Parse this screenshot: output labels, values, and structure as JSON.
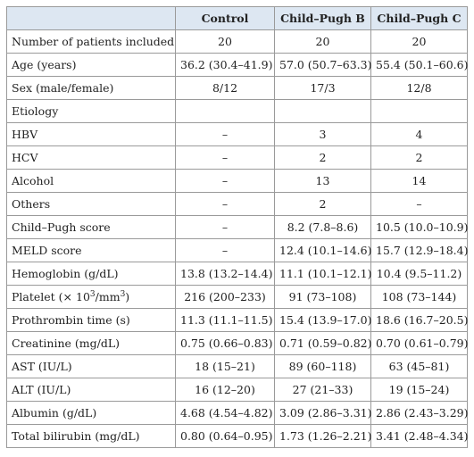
{
  "table": {
    "header": [
      "Control",
      "Child–Pugh B",
      "Child–Pugh C"
    ],
    "rows": [
      [
        "Number of patients included",
        "20",
        "20",
        "20"
      ],
      [
        "Age (years)",
        "36.2 (30.4–41.9)",
        "57.0 (50.7–63.3)",
        "55.4 (50.1–60.6)"
      ],
      [
        "Sex (male/female)",
        "8/12",
        "17/3",
        "12/8"
      ],
      [
        "Etiology"
      ],
      [
        "HBV",
        "–",
        "3",
        "4"
      ],
      [
        "HCV",
        "–",
        "2",
        "2"
      ],
      [
        "Alcohol",
        "–",
        "13",
        "14"
      ],
      [
        "Others",
        "–",
        "2",
        "–"
      ],
      [
        "Child–Pugh score",
        "–",
        "8.2 (7.8–8.6)",
        "10.5 (10.0–10.9)"
      ],
      [
        "MELD score",
        "–",
        "12.4 (10.1–14.6)",
        "15.7 (12.9–18.4)"
      ],
      [
        "Hemoglobin (g/dL)",
        "13.8 (13.2–14.4)",
        "11.1 (10.1–12.1)",
        "10.4 (9.5–11.2)"
      ],
      [
        [
          "Platelet (× 10",
          "3",
          "/mm",
          "3",
          ")"
        ],
        "216 (200–233)",
        "91 (73–108)",
        "108 (73–144)"
      ],
      [
        "Prothrombin time (s)",
        "11.3 (11.1–11.5)",
        "15.4 (13.9–17.0)",
        "18.6 (16.7–20.5)"
      ],
      [
        "Creatinine (mg/dL)",
        "0.75 (0.66–0.83)",
        "0.71 (0.59–0.82)",
        "0.70 (0.61–0.79)"
      ],
      [
        "AST (IU/L)",
        "18 (15–21)",
        "89 (60–118)",
        "63 (45–81)"
      ],
      [
        "ALT (IU/L)",
        "16 (12–20)",
        "27 (21–33)",
        "19 (15–24)"
      ],
      [
        "Albumin (g/dL)",
        "4.68 (4.54–4.82)",
        "3.09 (2.86–3.31)",
        "2.86 (2.43–3.29)"
      ],
      [
        "Total bilirubin (mg/dL)",
        "0.80 (0.64–0.95)",
        "1.73 (1.26–2.21)",
        "3.41 (2.48–4.34)"
      ]
    ]
  }
}
